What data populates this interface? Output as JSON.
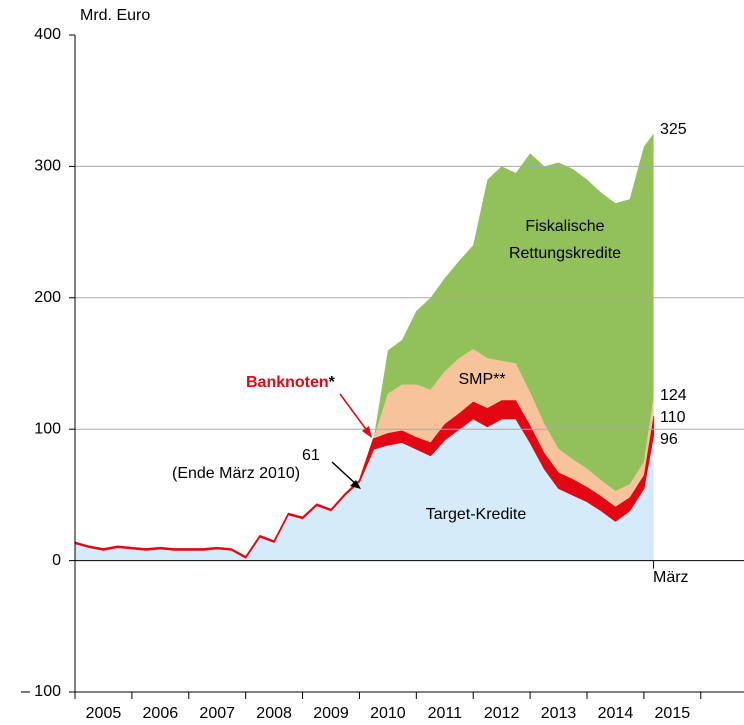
{
  "chart_data": {
    "type": "stacked_area",
    "y_axis_label": "Mrd. Euro",
    "x": [
      2005,
      2005.25,
      2005.5,
      2005.75,
      2006,
      2006.25,
      2006.5,
      2006.75,
      2007,
      2007.25,
      2007.5,
      2007.75,
      2008,
      2008.25,
      2008.5,
      2008.75,
      2009,
      2009.25,
      2009.5,
      2009.75,
      2010,
      2010.25,
      2010.5,
      2010.75,
      2011,
      2011.25,
      2011.5,
      2011.75,
      2012,
      2012.25,
      2012.5,
      2012.75,
      2013,
      2013.25,
      2013.5,
      2013.75,
      2014,
      2014.25,
      2014.5,
      2014.75,
      2015,
      2015.17
    ],
    "series": [
      {
        "name": "Target-Kredite",
        "color": "#d5ebf9",
        "values": [
          13,
          10,
          8,
          10,
          9,
          8,
          9,
          8,
          8,
          8,
          9,
          8,
          2,
          18,
          14,
          35,
          32,
          42,
          38,
          50,
          60,
          85,
          88,
          90,
          85,
          80,
          92,
          100,
          108,
          102,
          108,
          108,
          90,
          70,
          55,
          50,
          45,
          38,
          30,
          38,
          55,
          96
        ]
      },
      {
        "name": "Banknoten",
        "color": "#e30613",
        "values": [
          1,
          1,
          1,
          1,
          1,
          1,
          1,
          1,
          1,
          1,
          1,
          1,
          1,
          1,
          1,
          1,
          1,
          1,
          1,
          1,
          1,
          8,
          9,
          9,
          9,
          10,
          12,
          12,
          13,
          14,
          14,
          14,
          13,
          12,
          12,
          12,
          11,
          11,
          11,
          10,
          10,
          14
        ]
      },
      {
        "name": "SMP**",
        "color": "#f7c39b",
        "values": [
          0,
          0,
          0,
          0,
          0,
          0,
          0,
          0,
          0,
          0,
          0,
          0,
          0,
          0,
          0,
          0,
          0,
          0,
          0,
          0,
          0,
          0,
          30,
          35,
          40,
          40,
          40,
          42,
          40,
          38,
          30,
          28,
          25,
          22,
          18,
          15,
          14,
          12,
          12,
          10,
          10,
          14
        ]
      },
      {
        "name": "Fiskalische Rettungskredite",
        "color": "#92c05a",
        "values": [
          0,
          0,
          0,
          0,
          0,
          0,
          0,
          0,
          0,
          0,
          0,
          0,
          0,
          0,
          0,
          0,
          0,
          0,
          0,
          0,
          0,
          0,
          33,
          34,
          56,
          70,
          71,
          74,
          79,
          136,
          148,
          145,
          182,
          196,
          218,
          221,
          220,
          219,
          219,
          217,
          240,
          201
        ]
      }
    ],
    "banknoten_label": "Banknoten",
    "banknoten_star": "*",
    "fiscal_label_lines": [
      "Fiskalische",
      "Rettungskredite"
    ],
    "annotations": [
      "61",
      "(Ende März 2010)",
      "325",
      "124",
      "110",
      "96",
      "März"
    ],
    "xlim": [
      2005,
      2016.76
    ],
    "xticks": [
      2005,
      2006,
      2007,
      2008,
      2009,
      2010,
      2011,
      2012,
      2013,
      2014,
      2015,
      2016
    ],
    "year_labels": [
      "2005",
      "2006",
      "2007",
      "2008",
      "2009",
      "2010",
      "2011",
      "2012",
      "2013",
      "2014",
      "2015"
    ],
    "ylim": [
      -100,
      400
    ],
    "yticks": [
      {
        "value": -100,
        "label": "– 100"
      },
      0,
      100,
      200,
      300,
      400
    ],
    "grid": true
  }
}
